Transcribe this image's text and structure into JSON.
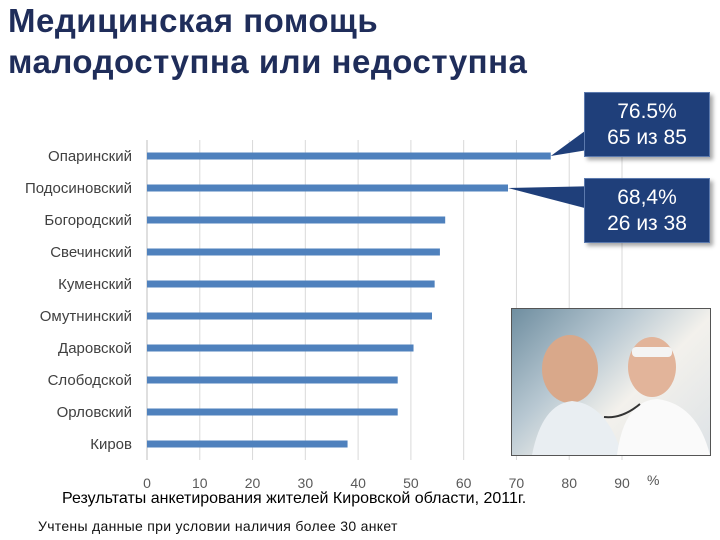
{
  "title": {
    "line1": "Медицинская помощь",
    "line2": "малодоступна или недоступна"
  },
  "callouts": [
    {
      "line1": "76.5%",
      "line2": "65 из 85",
      "color": "#1f3f7a"
    },
    {
      "line1": "68,4%",
      "line2": "26 из 38",
      "color": "#1f3f7a"
    }
  ],
  "axis_unit": "%",
  "footnote": "Результаты анкетирования жителей Кировской области, 2011г.",
  "note": "Учтены данные при условии наличия более 30 анкет",
  "photo": {
    "icon": "doctor-patient-photo"
  },
  "chart_data": {
    "type": "bar",
    "orientation": "horizontal",
    "categories": [
      "Опаринский",
      "Подосиновский",
      "Богородский",
      "Свечинский",
      "Куменский",
      "Омутнинский",
      "Даровской",
      "Слободской",
      "Орловский",
      "Киров"
    ],
    "values": [
      76.5,
      68.4,
      56.5,
      55.5,
      54.5,
      54,
      50.5,
      47.5,
      47.5,
      38
    ],
    "xlim": [
      0,
      90
    ],
    "xticks": [
      0,
      10,
      20,
      30,
      40,
      50,
      60,
      70,
      80,
      90
    ],
    "xlabel": "%",
    "grid": "vertical",
    "bar_color": "#4f81bd",
    "grid_color": "#d9d9d9"
  }
}
